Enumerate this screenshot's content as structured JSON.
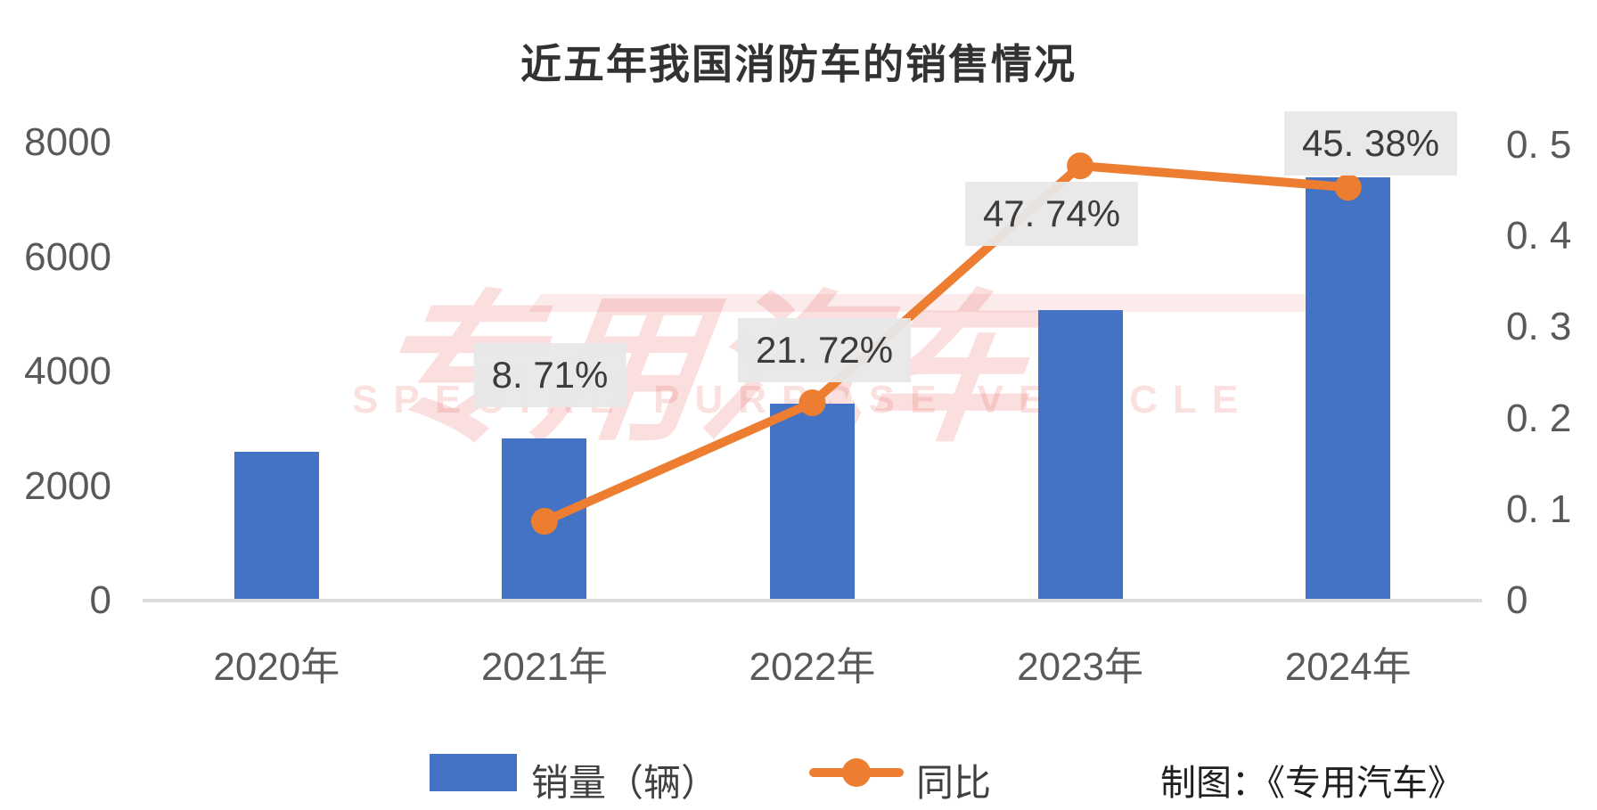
{
  "title": "近五年我国消防车的销售情况",
  "watermark": {
    "cn": "专用汽车",
    "en": "SPECIAL PURPOSE VEHICLE"
  },
  "credit": "制图：《专用汽车》",
  "legend": [
    {
      "label": "销量（辆）",
      "marker": "bar-swatch"
    },
    {
      "label": "同比",
      "marker": "line-dot"
    }
  ],
  "colors": {
    "bar": "#4472C4",
    "line": "#ED7D31",
    "axis_text": "#595959",
    "title_text": "#323232",
    "label_bg": "#e8e8e8",
    "label_text": "#3c3c3c",
    "axis_line": "#dcdcdc",
    "watermark": "#e23e36",
    "background": "#ffffff"
  },
  "chart_data": {
    "type": "bar",
    "subtype": "combo-bar-line-dual-axis",
    "title": "近五年我国消防车的销售情况",
    "categories": [
      "2020年",
      "2021年",
      "2022年",
      "2023年",
      "2024年"
    ],
    "series": [
      {
        "name": "销量（辆）",
        "type": "bar",
        "axis": "left",
        "estimated": true,
        "values": [
          2600,
          2826,
          3440,
          5081,
          7387
        ]
      },
      {
        "name": "同比",
        "type": "line",
        "axis": "right",
        "values": [
          null,
          0.0871,
          0.2172,
          0.4774,
          0.4538
        ],
        "point_labels": [
          null,
          "8. 71%",
          "21. 72%",
          "47. 74%",
          "45. 38%"
        ]
      }
    ],
    "left_axis": {
      "range": [
        0,
        8000
      ],
      "ticks": [
        0,
        2000,
        4000,
        6000,
        8000
      ],
      "tick_labels": [
        "0",
        "2000",
        "4000",
        "6000",
        "8000"
      ]
    },
    "right_axis": {
      "range": [
        0,
        0.5
      ],
      "ticks": [
        0,
        0.1,
        0.2,
        0.3,
        0.4,
        0.5
      ],
      "tick_labels": [
        "0",
        "0. 1",
        "0. 2",
        "0. 3",
        "0. 4",
        "0. 5"
      ]
    },
    "grid": false,
    "legend_position": "bottom"
  }
}
